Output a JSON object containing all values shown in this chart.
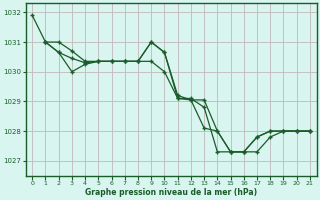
{
  "xlabel": "Graphe pression niveau de la mer (hPa)",
  "background_color": "#d8f5f0",
  "grid_color": "#c0b8b8",
  "line_color": "#1a5c2a",
  "border_color": "#1a5c2a",
  "ylim": [
    1026.5,
    1032.3
  ],
  "xlim": [
    -0.5,
    21.5
  ],
  "yticks": [
    1027,
    1028,
    1029,
    1030,
    1031,
    1032
  ],
  "xticks": [
    0,
    1,
    2,
    3,
    4,
    5,
    6,
    7,
    8,
    9,
    10,
    11,
    12,
    13,
    14,
    15,
    16,
    17,
    18,
    19,
    20,
    21
  ],
  "series": [
    {
      "x": [
        0,
        1,
        2,
        3,
        4,
        5,
        6,
        7,
        8,
        9,
        10,
        11,
        12,
        13,
        14,
        15,
        16,
        17,
        18,
        19,
        20,
        21
      ],
      "y": [
        1031.9,
        1031.0,
        1031.0,
        1030.7,
        1030.35,
        1030.35,
        1030.35,
        1030.35,
        1030.35,
        1031.0,
        1030.65,
        1029.1,
        1029.1,
        1028.8,
        1027.3,
        1027.3,
        1027.3,
        1027.3,
        1027.8,
        1028.0,
        1028.0,
        1028.0
      ]
    },
    {
      "x": [
        1,
        2,
        3,
        4,
        5,
        6,
        7,
        8,
        9,
        10,
        11,
        12,
        13,
        14,
        15,
        16,
        17,
        18,
        19,
        20,
        21
      ],
      "y": [
        1031.0,
        1030.65,
        1030.45,
        1030.3,
        1030.35,
        1030.35,
        1030.35,
        1030.35,
        1030.35,
        1030.0,
        1029.1,
        1029.05,
        1029.05,
        1028.0,
        1027.3,
        1027.3,
        1027.8,
        1028.0,
        1028.0,
        1028.0,
        1028.0
      ]
    },
    {
      "x": [
        1,
        2,
        3,
        4,
        5,
        6,
        7,
        8,
        9,
        10,
        11,
        12,
        13,
        14,
        15,
        16,
        17,
        18,
        19,
        20,
        21
      ],
      "y": [
        1031.0,
        1030.65,
        1030.0,
        1030.25,
        1030.35,
        1030.35,
        1030.35,
        1030.35,
        1031.0,
        1030.65,
        1029.2,
        1029.05,
        1028.1,
        1028.0,
        1027.3,
        1027.3,
        1027.8,
        1028.0,
        1028.0,
        1028.0,
        1028.0
      ]
    }
  ]
}
